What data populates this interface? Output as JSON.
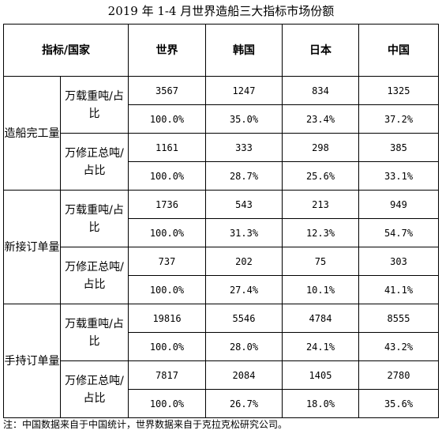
{
  "title": "2019 年 1-4 月世界造船三大指标市场份额",
  "header": {
    "corner": "指标/国家",
    "columns": [
      "世界",
      "韩国",
      "日本",
      "中国"
    ]
  },
  "groups": [
    {
      "name": "造船完工量",
      "subs": [
        {
          "label": "万载重吨/占比",
          "values": [
            "3567",
            "1247",
            "834",
            "1325"
          ],
          "shares": [
            "100.0%",
            "35.0%",
            "23.4%",
            "37.2%"
          ]
        },
        {
          "label": "万修正总吨/占比",
          "values": [
            "1161",
            "333",
            "298",
            "385"
          ],
          "shares": [
            "100.0%",
            "28.7%",
            "25.6%",
            "33.1%"
          ]
        }
      ]
    },
    {
      "name": "新接订单量",
      "subs": [
        {
          "label": "万载重吨/占比",
          "values": [
            "1736",
            "543",
            "213",
            "949"
          ],
          "shares": [
            "100.0%",
            "31.3%",
            "12.3%",
            "54.7%"
          ]
        },
        {
          "label": "万修正总吨/占比",
          "values": [
            "737",
            "202",
            "75",
            "303"
          ],
          "shares": [
            "100.0%",
            "27.4%",
            "10.1%",
            "41.1%"
          ]
        }
      ]
    },
    {
      "name": "手持订单量",
      "subs": [
        {
          "label": "万载重吨/占比",
          "values": [
            "19816",
            "5546",
            "4784",
            "8555"
          ],
          "shares": [
            "100.0%",
            "28.0%",
            "24.1%",
            "43.2%"
          ]
        },
        {
          "label": "万修正总吨/占比",
          "values": [
            "7817",
            "2084",
            "1405",
            "2780"
          ],
          "shares": [
            "100.0%",
            "26.7%",
            "18.0%",
            "35.6%"
          ]
        }
      ]
    }
  ],
  "note": "注：中国数据来自于中国统计，世界数据来自于克拉克松研究公司。"
}
